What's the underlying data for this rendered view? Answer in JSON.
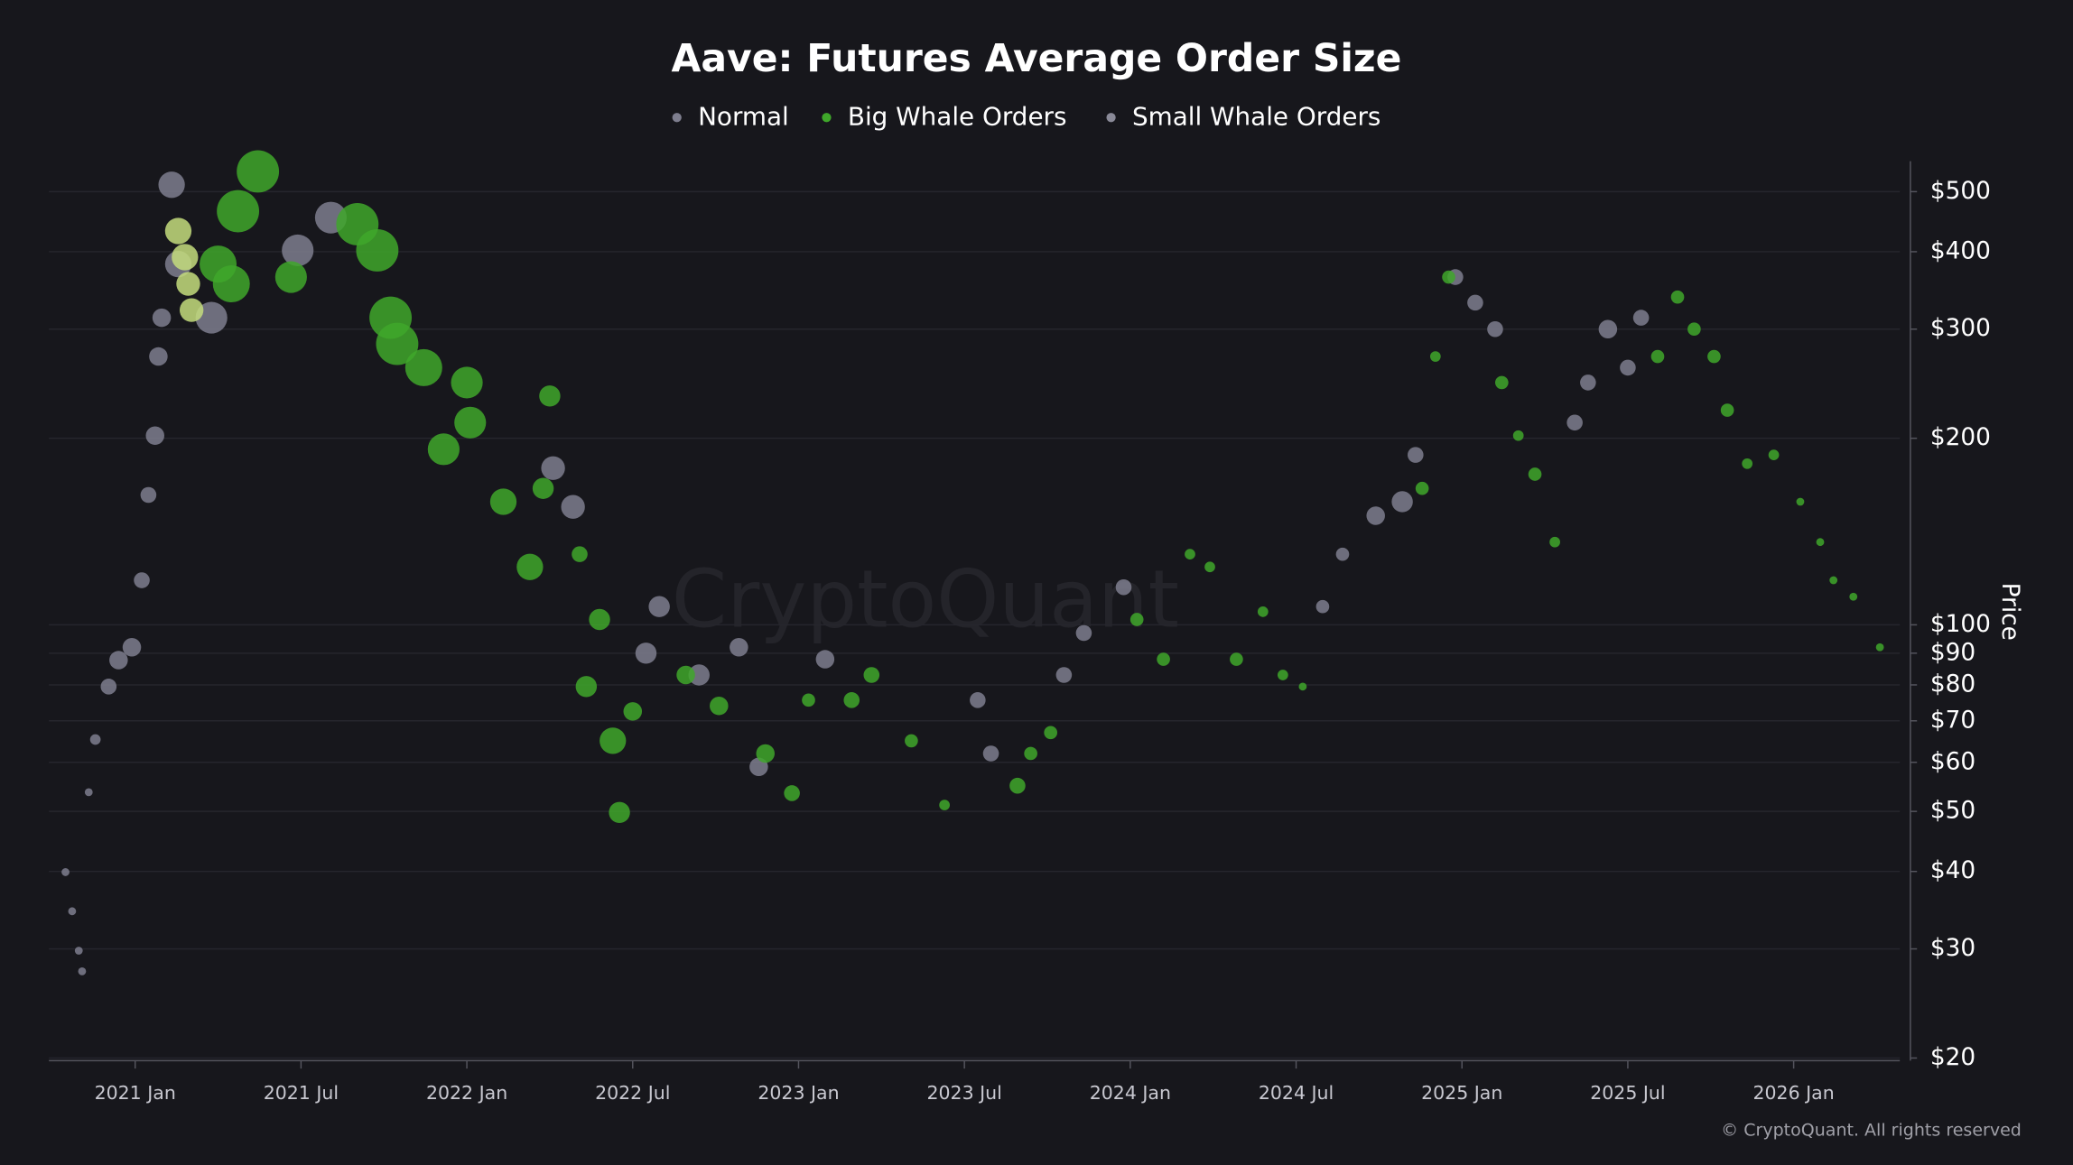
{
  "chart_data": {
    "type": "scatter",
    "title": "Aave: Futures Average Order Size",
    "watermark": "CryptoQuant",
    "copyright": "© CryptoQuant. All rights reserved",
    "y_label": "Price",
    "log_y": true,
    "grid": true,
    "legend": "top",
    "xlim": [
      2020.74,
      2026.32
    ],
    "xticks": [
      {
        "value": 2021.0,
        "label": "2021 Jan"
      },
      {
        "value": 2021.5,
        "label": "2021 Jul"
      },
      {
        "value": 2022.0,
        "label": "2022 Jan"
      },
      {
        "value": 2022.5,
        "label": "2022 Jul"
      },
      {
        "value": 2023.0,
        "label": "2023 Jan"
      },
      {
        "value": 2023.5,
        "label": "2023 Jul"
      },
      {
        "value": 2024.0,
        "label": "2024 Jan"
      },
      {
        "value": 2024.5,
        "label": "2024 Jul"
      },
      {
        "value": 2025.0,
        "label": "2025 Jan"
      },
      {
        "value": 2025.5,
        "label": "2025 Jul"
      },
      {
        "value": 2026.0,
        "label": "2026 Jan"
      }
    ],
    "ylim": [
      20,
      560
    ],
    "yticks": [
      {
        "value": 500,
        "label": "$500"
      },
      {
        "value": 400,
        "label": "$400"
      },
      {
        "value": 300,
        "label": "$300"
      },
      {
        "value": 200,
        "label": "$200"
      },
      {
        "value": 100,
        "label": "$100"
      },
      {
        "value": 90,
        "label": "$90"
      },
      {
        "value": 80,
        "label": "$80"
      },
      {
        "value": 70,
        "label": "$70"
      },
      {
        "value": 60,
        "label": "$60"
      },
      {
        "value": 50,
        "label": "$50"
      },
      {
        "value": 40,
        "label": "$40"
      },
      {
        "value": 30,
        "label": "$30"
      },
      {
        "value": 20,
        "label": "$20"
      }
    ],
    "series": [
      {
        "name": "Normal",
        "color": "#7e7e8e",
        "x": [
          2020.79,
          2020.81,
          2020.83,
          2020.84,
          2020.86,
          2020.88,
          2020.92,
          2020.95,
          2020.99,
          2021.02,
          2021.04,
          2021.06,
          2021.07,
          2021.08,
          2021.11,
          2021.13,
          2021.23,
          2021.49,
          2021.59,
          2022.26,
          2022.32,
          2022.54,
          2022.58,
          2022.7,
          2022.82,
          2022.88,
          2023.08,
          2023.54,
          2023.58,
          2023.8,
          2023.86,
          2023.98,
          2024.58,
          2024.64,
          2024.74,
          2024.82,
          2024.86,
          2024.98,
          2025.04,
          2025.1,
          2025.34,
          2025.38,
          2025.44,
          2025.5,
          2025.54
        ],
        "values": [
          39.9,
          34.5,
          29.8,
          27.6,
          53.7,
          65.3,
          79.5,
          87.7,
          92,
          118,
          162,
          202,
          271,
          313,
          513,
          382,
          313,
          402,
          454,
          179,
          155,
          90,
          107,
          83,
          92,
          59,
          88,
          75.6,
          62,
          83,
          97,
          115,
          107,
          130,
          150,
          158,
          188,
          364,
          331,
          300,
          212,
          246,
          300,
          260,
          313
        ],
        "sizes": [
          3,
          3,
          3,
          3,
          3,
          4,
          6,
          7,
          7,
          6,
          6,
          7,
          7,
          7,
          10,
          10,
          12,
          12,
          12,
          9,
          9,
          8,
          8,
          8,
          7,
          7,
          7,
          6,
          6,
          6,
          6,
          6,
          5,
          5,
          7,
          8,
          6,
          6,
          6,
          6,
          6,
          6,
          7,
          6,
          6
        ]
      },
      {
        "name": "Big Whale Orders",
        "color": "#3fa72a",
        "x": [
          2021.25,
          2021.29,
          2021.31,
          2021.37,
          2021.47,
          2021.67,
          2021.73,
          2021.77,
          2021.79,
          2021.87,
          2021.93,
          2022.0,
          2022.01,
          2022.11,
          2022.19,
          2022.23,
          2022.25,
          2022.34,
          2022.36,
          2022.4,
          2022.44,
          2022.46,
          2022.5,
          2022.66,
          2022.76,
          2022.9,
          2022.98,
          2023.03,
          2023.16,
          2023.22,
          2023.34,
          2023.44,
          2023.66,
          2023.7,
          2023.76,
          2024.02,
          2024.1,
          2024.18,
          2024.24,
          2024.32,
          2024.4,
          2024.46,
          2024.52,
          2024.88,
          2024.92,
          2024.96,
          2025.12,
          2025.17,
          2025.22,
          2025.28,
          2025.59,
          2025.65,
          2025.7,
          2025.76,
          2025.8,
          2025.86,
          2025.94,
          2026.02,
          2026.08,
          2026.12,
          2026.18,
          2026.26
        ],
        "values": [
          382,
          355,
          465,
          539,
          364,
          443,
          402,
          313,
          284,
          260,
          192,
          246,
          212,
          158,
          124,
          166,
          234,
          130,
          79.5,
          102,
          65,
          49.8,
          72.5,
          83,
          74,
          62,
          53.5,
          75.6,
          75.6,
          83,
          65,
          51.2,
          55,
          62,
          67,
          102,
          88,
          130,
          124,
          88,
          105,
          83,
          79.5,
          166,
          271,
          364,
          246,
          202,
          175,
          136,
          271,
          338,
          300,
          271,
          222,
          182,
          188,
          158,
          136,
          118,
          111,
          92
        ],
        "sizes": [
          14,
          14,
          16,
          16,
          12,
          16,
          16,
          16,
          16,
          14,
          12,
          12,
          12,
          10,
          10,
          8,
          8,
          6,
          8,
          8,
          10,
          8,
          7,
          7,
          7,
          7,
          6,
          5,
          6,
          6,
          5,
          4,
          6,
          5,
          5,
          5,
          5,
          4,
          4,
          5,
          4,
          4,
          3,
          5,
          4,
          5,
          5,
          4,
          5,
          4,
          5,
          5,
          5,
          5,
          5,
          4,
          4,
          3,
          3,
          3,
          3,
          3
        ]
      },
      {
        "name": "Small Whale Orders",
        "color": "#c4dd7c",
        "x": [
          2021.13,
          2021.15,
          2021.16,
          2021.17
        ],
        "values": [
          432,
          392,
          355,
          322
        ],
        "sizes": [
          10,
          10,
          9,
          9
        ]
      }
    ]
  }
}
